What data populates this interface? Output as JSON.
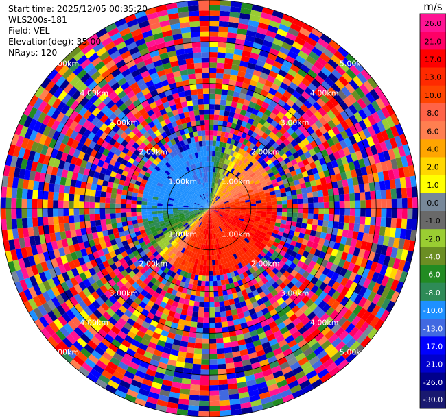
{
  "header": {
    "start_time": "Start time: 2025/12/05 00:35:20",
    "instrument": "WLS200s-181",
    "field": "Field: VEL",
    "elevation": "Elevation(deg): 35.00",
    "nrays": "NRays: 120"
  },
  "colorbar": {
    "unit": "m/s",
    "ticks": [
      "26.0",
      "21.0",
      "17.0",
      "13.0",
      "10.0",
      "8.0",
      "6.0",
      "4.0",
      "2.0",
      "1.0",
      "0.0",
      "-1.0",
      "-2.0",
      "-4.0",
      "-6.0",
      "-8.0",
      "-10.0",
      "-13.0",
      "-17.0",
      "-21.0",
      "-26.0",
      "-30.0"
    ],
    "colors": [
      "#ff1493",
      "#ff0066",
      "#ff0000",
      "#ff2a00",
      "#ff4500",
      "#ff6347",
      "#ff7f50",
      "#ffa500",
      "#ffd700",
      "#ffff00",
      "#778899",
      "#696969",
      "#9acd32",
      "#6b8e23",
      "#228b22",
      "#2e8b57",
      "#1e90ff",
      "#4169e1",
      "#0000ff",
      "#0000cd",
      "#00008b",
      "#191970"
    ]
  },
  "chart_data": {
    "type": "heatmap",
    "projection": "PPI (polar)",
    "field": "VEL",
    "units": "m/s",
    "n_rays": 120,
    "elevation_deg": 35.0,
    "max_range_km": 5.0,
    "range_rings_km": [
      1.0,
      2.0,
      3.0,
      4.0,
      5.0
    ],
    "ring_labels": [
      "1.00km",
      "2.00km",
      "3.00km",
      "4.00km",
      "5.00km"
    ],
    "value_range": [
      -30.0,
      26.0
    ],
    "noise_beyond_km": 1.6,
    "sectors": [
      {
        "azimuth_deg": 0,
        "velocity_ms": -13.0
      },
      {
        "azimuth_deg": 30,
        "velocity_ms": 3.0
      },
      {
        "azimuth_deg": 60,
        "velocity_ms": 5.0
      },
      {
        "azimuth_deg": 90,
        "velocity_ms": 12.0
      },
      {
        "azimuth_deg": 120,
        "velocity_ms": 14.0
      },
      {
        "azimuth_deg": 150,
        "velocity_ms": 11.0
      },
      {
        "azimuth_deg": 180,
        "velocity_ms": 14.0
      },
      {
        "azimuth_deg": 210,
        "velocity_ms": 9.0
      },
      {
        "azimuth_deg": 240,
        "velocity_ms": -6.0
      },
      {
        "azimuth_deg": 270,
        "velocity_ms": -11.0
      },
      {
        "azimuth_deg": 300,
        "velocity_ms": -12.0
      },
      {
        "azimuth_deg": 330,
        "velocity_ms": -12.0
      }
    ],
    "grid": true
  }
}
